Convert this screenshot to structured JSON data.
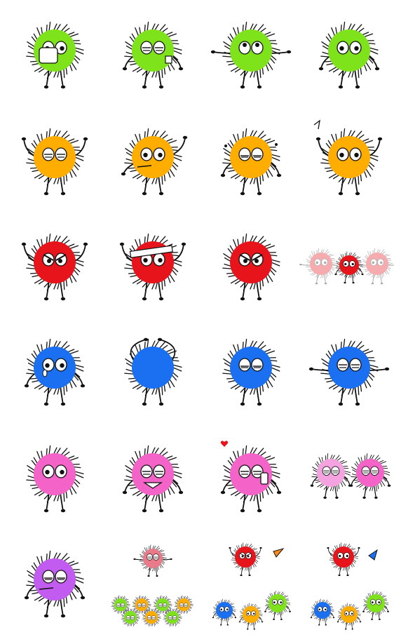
{
  "colors": {
    "green": "#7ee31a",
    "orange": "#ffad00",
    "red": "#e8141b",
    "blue": "#1a70f0",
    "pink": "#f463c8",
    "purple": "#c25cf0",
    "outline": "#111111",
    "white": "#ffffff"
  },
  "stickers": [
    {
      "row": 0,
      "col": 0,
      "name": "green-germ-wearing-mask-sticker",
      "color": "green",
      "eyes": "open",
      "accessory": "mask",
      "arms": "holding"
    },
    {
      "row": 0,
      "col": 1,
      "name": "green-germ-sleepy-with-cup-sticker",
      "color": "green",
      "eyes": "closed",
      "accessory": "cup",
      "arms": "down"
    },
    {
      "row": 0,
      "col": 2,
      "name": "green-germ-looking-up-sticker",
      "color": "green",
      "eyes": "up",
      "accessory": "none",
      "arms": "spread"
    },
    {
      "row": 0,
      "col": 3,
      "name": "green-germ-surprised-sticker",
      "color": "green",
      "eyes": "open",
      "accessory": "none",
      "arms": "down"
    },
    {
      "row": 1,
      "col": 0,
      "name": "orange-germ-arms-raised-sticker",
      "color": "orange",
      "eyes": "closed",
      "accessory": "none",
      "arms": "up"
    },
    {
      "row": 1,
      "col": 1,
      "name": "orange-germ-waving-sticker",
      "color": "orange",
      "eyes": "open",
      "accessory": "mouthstick",
      "arms": "wave"
    },
    {
      "row": 1,
      "col": 2,
      "name": "orange-germ-sweating-sticker",
      "color": "orange",
      "eyes": "sleepy",
      "accessory": "drops",
      "arms": "down"
    },
    {
      "row": 1,
      "col": 3,
      "name": "orange-germ-with-flag-sticker",
      "color": "orange",
      "eyes": "open",
      "accessory": "note",
      "arms": "up"
    },
    {
      "row": 2,
      "col": 0,
      "name": "red-germ-angry-flexing-sticker",
      "color": "red",
      "eyes": "angry",
      "accessory": "none",
      "arms": "up"
    },
    {
      "row": 2,
      "col": 1,
      "name": "red-germ-with-headband-sticker",
      "color": "red",
      "eyes": "open",
      "accessory": "headband",
      "arms": "up"
    },
    {
      "row": 2,
      "col": 2,
      "name": "red-germ-fists-up-sticker",
      "color": "red",
      "eyes": "angry",
      "accessory": "none",
      "arms": "fists"
    },
    {
      "row": 2,
      "col": 3,
      "name": "red-germ-group-fading-sticker",
      "color": "red",
      "eyes": "open",
      "accessory": "group",
      "arms": "spread"
    },
    {
      "row": 3,
      "col": 0,
      "name": "blue-germ-crying-sticker",
      "color": "blue",
      "eyes": "tear",
      "accessory": "none",
      "arms": "down"
    },
    {
      "row": 3,
      "col": 1,
      "name": "blue-germ-back-turned-sticker",
      "color": "blue",
      "eyes": "none",
      "accessory": "none",
      "arms": "head"
    },
    {
      "row": 3,
      "col": 2,
      "name": "blue-germ-worried-sticker",
      "color": "blue",
      "eyes": "sleepy",
      "accessory": "none",
      "arms": "face"
    },
    {
      "row": 3,
      "col": 3,
      "name": "blue-germ-shaking-sticker",
      "color": "blue",
      "eyes": "closed",
      "accessory": "none",
      "arms": "spread"
    },
    {
      "row": 4,
      "col": 0,
      "name": "pink-germ-thinking-sticker",
      "color": "pink",
      "eyes": "wink",
      "accessory": "none",
      "arms": "face"
    },
    {
      "row": 4,
      "col": 1,
      "name": "pink-germ-grumpy-sticker",
      "color": "pink",
      "eyes": "closed",
      "accessory": "mouthopen",
      "arms": "down"
    },
    {
      "row": 4,
      "col": 2,
      "name": "pink-germ-with-phone-sticker",
      "color": "pink",
      "eyes": "closed",
      "accessory": "phone",
      "arms": "down"
    },
    {
      "row": 4,
      "col": 3,
      "name": "pink-germ-pair-blushing-sticker",
      "color": "pink",
      "eyes": "closed",
      "accessory": "pair",
      "arms": "down"
    },
    {
      "row": 5,
      "col": 0,
      "name": "purple-germ-coughing-sticker",
      "color": "purple",
      "eyes": "sleepy",
      "accessory": "mouthstick",
      "arms": "down"
    },
    {
      "row": 5,
      "col": 1,
      "name": "germ-party-crowd-sticker",
      "color": "red",
      "eyes": "closed",
      "accessory": "crowd",
      "arms": "spread"
    },
    {
      "row": 5,
      "col": 2,
      "name": "germ-team-with-flag-sticker",
      "color": "red",
      "eyes": "angry",
      "accessory": "team",
      "arms": "up"
    },
    {
      "row": 5,
      "col": 3,
      "name": "germ-team-cheering-sticker",
      "color": "red",
      "eyes": "open",
      "accessory": "team2",
      "arms": "up"
    }
  ]
}
